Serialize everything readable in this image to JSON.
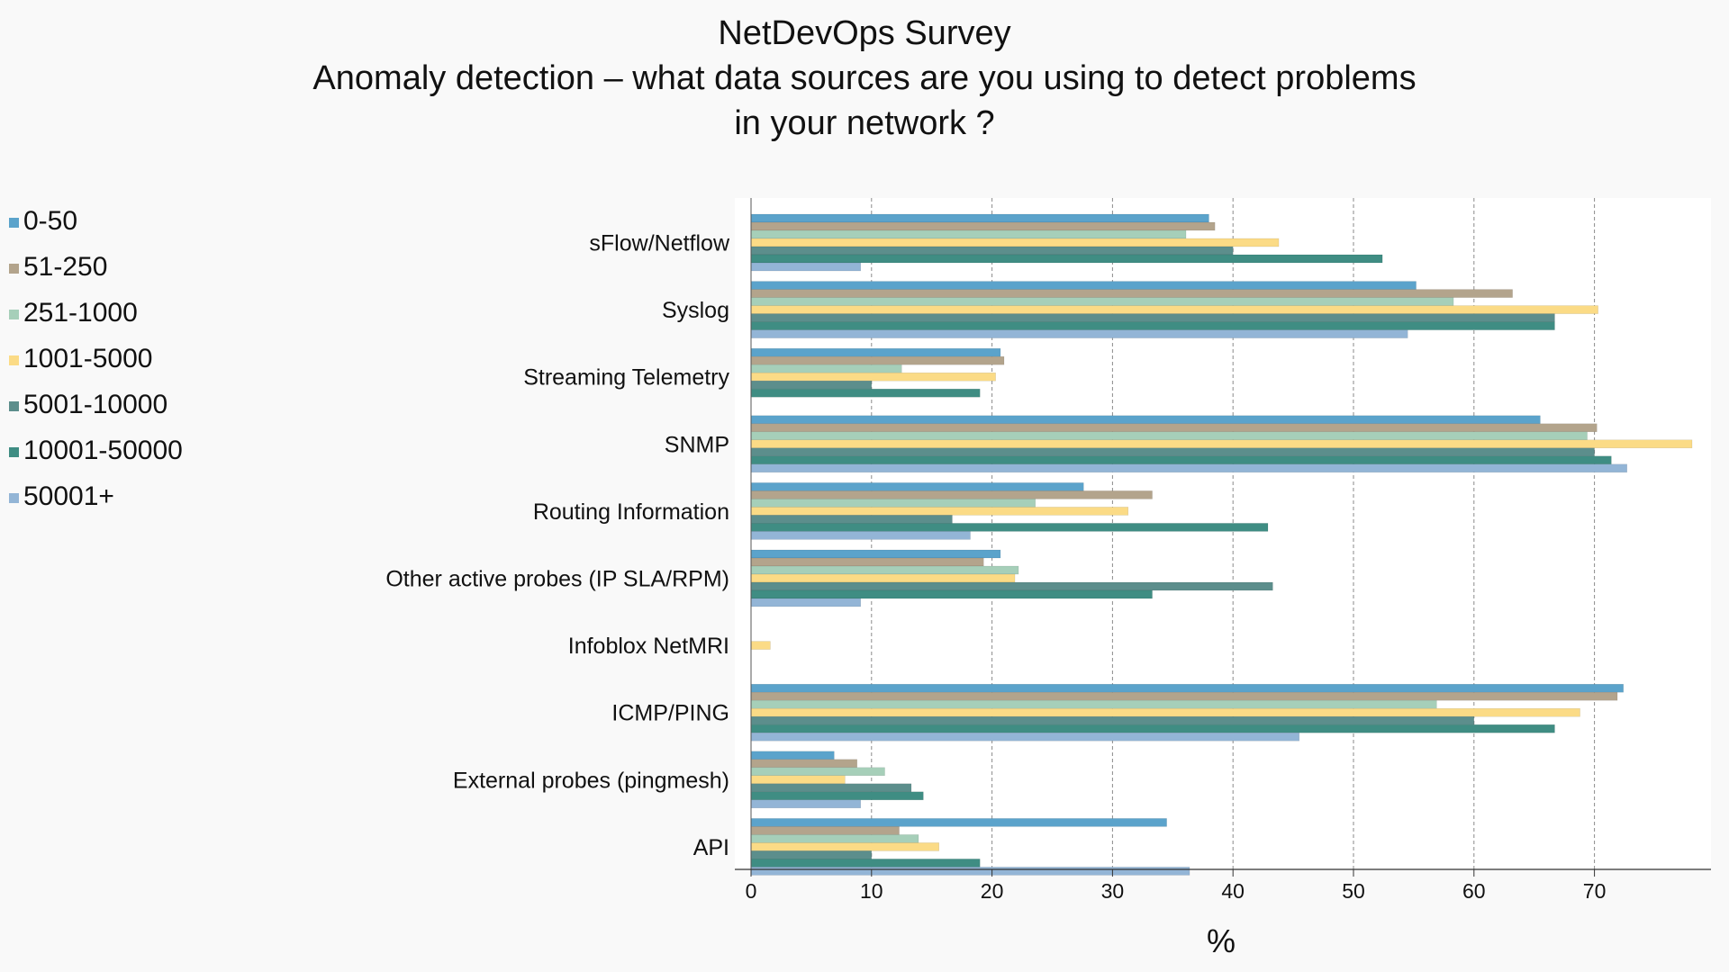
{
  "title_lines": [
    "NetDevOps Survey",
    "Anomaly detection – what data sources are you using to detect problems",
    "in your network ?"
  ],
  "legend": [
    {
      "label": "0-50",
      "color": "#5ba3cb"
    },
    {
      "label": "51-250",
      "color": "#b3a48c"
    },
    {
      "label": "251-1000",
      "color": "#a6cfb9"
    },
    {
      "label": "1001-5000",
      "color": "#fbdb86"
    },
    {
      "label": "5001-10000",
      "color": "#5c8e8c"
    },
    {
      "label": "10001-50000",
      "color": "#3f8d83"
    },
    {
      "label": "50001+",
      "color": "#93b5d6"
    }
  ],
  "chart_data": {
    "type": "bar",
    "orientation": "horizontal",
    "title": "NetDevOps Survey Anomaly detection – what data sources are you using to detect problems in your network ?",
    "xlabel": "%",
    "ylabel": "",
    "xlim": [
      0,
      79
    ],
    "xticks": [
      0,
      10,
      20,
      30,
      40,
      50,
      60,
      70
    ],
    "grid": "vertical dashed",
    "legend_position": "left",
    "categories": [
      "sFlow/Netflow",
      "Syslog",
      "Streaming Telemetry",
      "SNMP",
      "Routing Information",
      "Other active probes (IP SLA/RPM)",
      "Infoblox NetMRI",
      "ICMP/PING",
      "External probes (pingmesh)",
      "API"
    ],
    "series": [
      {
        "name": "0-50",
        "values": [
          38,
          55.2,
          20.7,
          65.5,
          27.6,
          20.7,
          0,
          72.4,
          6.9,
          34.5
        ]
      },
      {
        "name": "51-250",
        "values": [
          38.5,
          63.2,
          21,
          70.2,
          33.3,
          19.3,
          0,
          71.9,
          8.8,
          12.3
        ]
      },
      {
        "name": "251-1000",
        "values": [
          36.1,
          58.3,
          12.5,
          69.4,
          23.6,
          22.2,
          0,
          56.9,
          11.1,
          13.9
        ]
      },
      {
        "name": "1001-5000",
        "values": [
          43.8,
          70.3,
          20.3,
          78.1,
          31.3,
          21.9,
          1.6,
          68.8,
          7.8,
          15.6
        ]
      },
      {
        "name": "5001-10000",
        "values": [
          40,
          66.7,
          10,
          70,
          16.7,
          43.3,
          0,
          60,
          13.3,
          10
        ]
      },
      {
        "name": "10001-50000",
        "values": [
          52.4,
          66.7,
          19,
          71.4,
          42.9,
          33.3,
          0,
          66.7,
          14.3,
          19
        ]
      },
      {
        "name": "50001+",
        "values": [
          9.1,
          54.5,
          0,
          72.7,
          18.2,
          9.1,
          0,
          45.5,
          9.1,
          36.4
        ]
      }
    ]
  }
}
